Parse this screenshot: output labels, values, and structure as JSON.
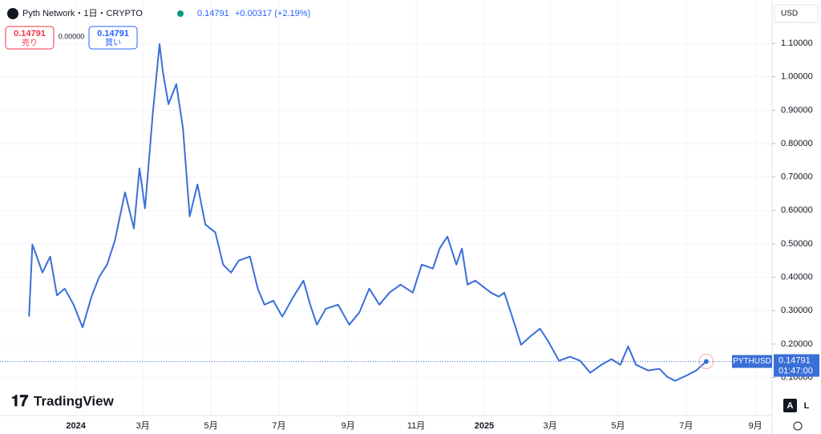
{
  "header": {
    "symbol": "Pyth Network・1日・CRYPTO",
    "last": "0.14791",
    "change": "+0.00317 (+2.19%)",
    "sell_price": "0.14791",
    "sell": "売り",
    "spread": "0.00000",
    "buy_price": "0.14791",
    "buy": "買い",
    "currency": "USD",
    "price_badge": "0.14791",
    "countdown": "01:47:00",
    "brand": "TradingView",
    "auto": "A",
    "log": "L"
  },
  "chart_data": {
    "type": "line",
    "x": [
      "2023-11-20",
      "2023-11-23",
      "2023-11-27",
      "2023-12-02",
      "2023-12-09",
      "2023-12-15",
      "2023-12-22",
      "2023-12-30",
      "2024-01-07",
      "2024-01-15",
      "2024-01-22",
      "2024-01-29",
      "2024-02-05",
      "2024-02-14",
      "2024-02-22",
      "2024-02-27",
      "2024-03-03",
      "2024-03-10",
      "2024-03-16",
      "2024-03-19",
      "2024-03-24",
      "2024-03-31",
      "2024-04-06",
      "2024-04-12",
      "2024-04-19",
      "2024-04-26",
      "2024-05-05",
      "2024-05-12",
      "2024-05-19",
      "2024-05-26",
      "2024-06-05",
      "2024-06-12",
      "2024-06-18",
      "2024-06-26",
      "2024-07-04",
      "2024-07-14",
      "2024-07-23",
      "2024-07-29",
      "2024-08-04",
      "2024-08-12",
      "2024-08-23",
      "2024-09-02",
      "2024-09-11",
      "2024-09-20",
      "2024-09-29",
      "2024-10-08",
      "2024-10-18",
      "2024-10-29",
      "2024-11-06",
      "2024-11-16",
      "2024-11-22",
      "2024-11-29",
      "2024-12-07",
      "2024-12-12",
      "2024-12-17",
      "2024-12-24",
      "2025-01-07",
      "2025-01-14",
      "2025-01-19",
      "2025-01-26",
      "2025-02-03",
      "2025-02-11",
      "2025-02-20",
      "2025-02-27",
      "2025-03-09",
      "2025-03-19",
      "2025-03-28",
      "2025-04-06",
      "2025-04-16",
      "2025-04-25",
      "2025-05-03",
      "2025-05-10",
      "2025-05-17",
      "2025-05-28",
      "2025-06-07",
      "2025-06-14",
      "2025-06-21",
      "2025-07-02",
      "2025-07-10",
      "2025-07-19"
    ],
    "series": [
      {
        "name": "PYTHUSD",
        "color": "#3a6fd8",
        "values": [
          0.282,
          0.498,
          0.462,
          0.414,
          0.462,
          0.346,
          0.366,
          0.318,
          0.25,
          0.342,
          0.402,
          0.438,
          0.51,
          0.654,
          0.546,
          0.726,
          0.606,
          0.894,
          1.098,
          1.014,
          0.918,
          0.978,
          0.846,
          0.582,
          0.678,
          0.558,
          0.534,
          0.438,
          0.414,
          0.45,
          0.462,
          0.366,
          0.318,
          0.33,
          0.282,
          0.342,
          0.39,
          0.318,
          0.258,
          0.306,
          0.318,
          0.258,
          0.294,
          0.366,
          0.318,
          0.354,
          0.378,
          0.354,
          0.438,
          0.426,
          0.486,
          0.522,
          0.438,
          0.486,
          0.378,
          0.39,
          0.354,
          0.342,
          0.354,
          0.282,
          0.198,
          0.222,
          0.246,
          0.21,
          0.15,
          0.162,
          0.15,
          0.114,
          0.138,
          0.155,
          0.138,
          0.193,
          0.138,
          0.121,
          0.126,
          0.102,
          0.09,
          0.107,
          0.121,
          0.14791
        ]
      }
    ],
    "xlim": [
      "2023-10-25",
      "2025-09-16"
    ],
    "xticks": [
      {
        "value": "2024-01-01",
        "label": "2024"
      },
      {
        "value": "2024-03-01",
        "label": "3月"
      },
      {
        "value": "2024-05-01",
        "label": "5月"
      },
      {
        "value": "2024-07-01",
        "label": "7月"
      },
      {
        "value": "2024-09-01",
        "label": "9月"
      },
      {
        "value": "2024-11-01",
        "label": "11月"
      },
      {
        "value": "2025-01-01",
        "label": "2025"
      },
      {
        "value": "2025-03-01",
        "label": "3月"
      },
      {
        "value": "2025-05-01",
        "label": "5月"
      },
      {
        "value": "2025-07-01",
        "label": "7月"
      },
      {
        "value": "2025-09-01",
        "label": "9月"
      }
    ],
    "ylim": [
      -0.014,
      1.23
    ],
    "yticks": [
      {
        "value": 0.1,
        "label": "0.10000"
      },
      {
        "value": 0.2,
        "label": "0.20000"
      },
      {
        "value": 0.3,
        "label": "0.30000"
      },
      {
        "value": 0.4,
        "label": "0.40000"
      },
      {
        "value": 0.5,
        "label": "0.50000"
      },
      {
        "value": 0.6,
        "label": "0.60000"
      },
      {
        "value": 0.7,
        "label": "0.70000"
      },
      {
        "value": 0.8,
        "label": "0.80000"
      },
      {
        "value": 0.9,
        "label": "0.90000"
      },
      {
        "value": 1.0,
        "label": "1.00000"
      },
      {
        "value": 1.1,
        "label": "1.10000"
      }
    ],
    "grid": true
  }
}
